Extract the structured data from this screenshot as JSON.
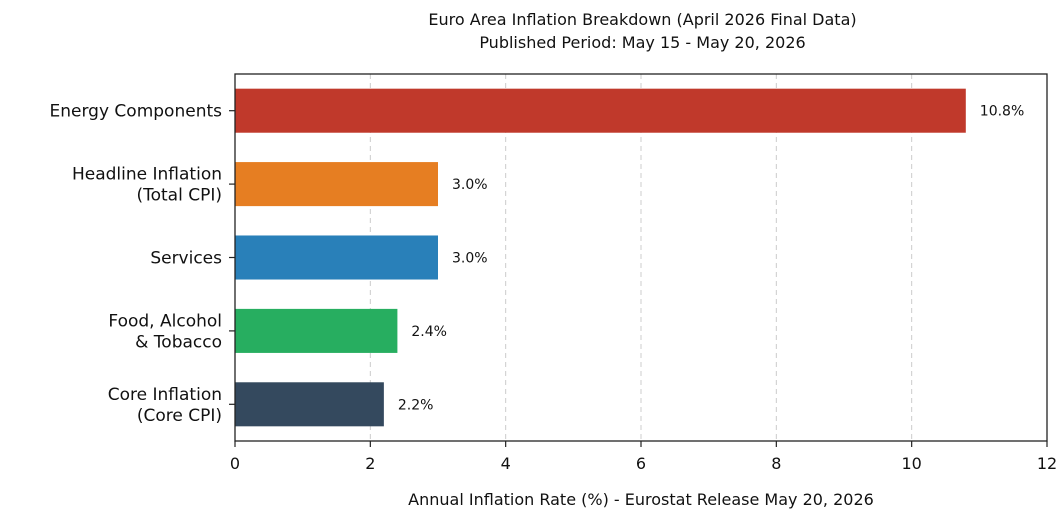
{
  "chart_data": {
    "type": "bar",
    "orientation": "horizontal",
    "title": "Euro Area Inflation Breakdown (April 2026 Final Data)",
    "subtitle": "Published Period: May 15 - May 20, 2026",
    "xlabel": "Annual Inflation Rate (%) - Eurostat Release May 20, 2026",
    "ylabel": "",
    "xlim": [
      0,
      12
    ],
    "xticks": [
      0,
      2,
      4,
      6,
      8,
      10,
      12
    ],
    "grid": "vertical-dashed",
    "categories": [
      [
        "Energy Components"
      ],
      [
        "Headline Inflation",
        "(Total CPI)"
      ],
      [
        "Services"
      ],
      [
        "Food, Alcohol",
        "& Tobacco"
      ],
      [
        "Core Inflation",
        "(Core CPI)"
      ]
    ],
    "values": [
      10.8,
      3.0,
      3.0,
      2.4,
      2.2
    ],
    "value_labels": [
      "10.8%",
      "3.0%",
      "3.0%",
      "2.4%",
      "2.2%"
    ],
    "colors": [
      "#c0392b",
      "#e67e22",
      "#2980b9",
      "#27ae60",
      "#34495e"
    ]
  }
}
